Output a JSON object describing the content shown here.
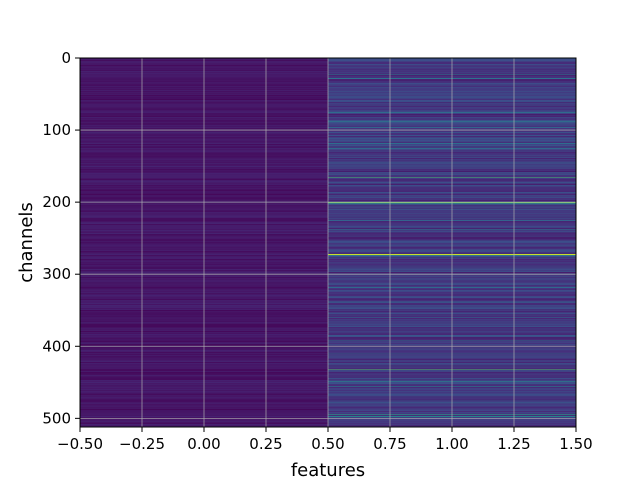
{
  "chart_data": {
    "type": "heatmap",
    "title": "",
    "xlabel": "features",
    "ylabel": "channels",
    "xlim": [
      -0.5,
      1.5
    ],
    "ylim": [
      512,
      0
    ],
    "y_inverted": true,
    "colormap": "viridis",
    "grid": true,
    "n_rows": 512,
    "n_columns": 2,
    "column_centers": [
      0,
      1
    ],
    "x_ticks": [
      -0.5,
      -0.25,
      0.0,
      0.25,
      0.5,
      0.75,
      1.0,
      1.25,
      1.5
    ],
    "x_tick_labels": [
      "−0.50",
      "−0.25",
      "0.00",
      "0.25",
      "0.50",
      "0.75",
      "1.00",
      "1.25",
      "1.50"
    ],
    "y_ticks": [
      0,
      100,
      200,
      300,
      400,
      500
    ],
    "y_tick_labels": [
      "0",
      "100",
      "200",
      "300",
      "400",
      "500"
    ],
    "value_range": [
      0,
      1
    ],
    "column_0_typical_value": 0.06,
    "column_1_bright_rows": [
      {
        "row": 22,
        "value": 0.42
      },
      {
        "row": 28,
        "value": 0.38
      },
      {
        "row": 75,
        "value": 0.35
      },
      {
        "row": 88,
        "value": 0.45
      },
      {
        "row": 96,
        "value": 0.32
      },
      {
        "row": 118,
        "value": 0.36
      },
      {
        "row": 125,
        "value": 0.34
      },
      {
        "row": 145,
        "value": 0.3
      },
      {
        "row": 165,
        "value": 0.7
      },
      {
        "row": 200,
        "value": 0.78
      },
      {
        "row": 201,
        "value": 0.6
      },
      {
        "row": 225,
        "value": 0.32
      },
      {
        "row": 238,
        "value": 0.42
      },
      {
        "row": 260,
        "value": 0.3
      },
      {
        "row": 272,
        "value": 0.92
      },
      {
        "row": 274,
        "value": 0.55
      },
      {
        "row": 296,
        "value": 0.3
      },
      {
        "row": 318,
        "value": 0.34
      },
      {
        "row": 338,
        "value": 0.32
      },
      {
        "row": 360,
        "value": 0.36
      },
      {
        "row": 385,
        "value": 0.34
      },
      {
        "row": 392,
        "value": 0.38
      },
      {
        "row": 410,
        "value": 0.32
      },
      {
        "row": 432,
        "value": 0.72
      },
      {
        "row": 448,
        "value": 0.5
      },
      {
        "row": 455,
        "value": 0.48
      },
      {
        "row": 478,
        "value": 0.3
      },
      {
        "row": 494,
        "value": 0.62
      },
      {
        "row": 497,
        "value": 0.44
      }
    ]
  }
}
